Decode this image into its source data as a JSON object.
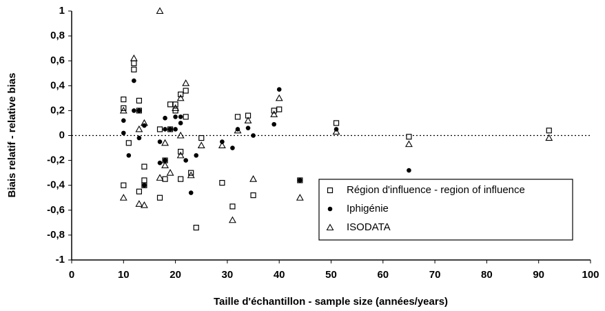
{
  "chart_data": {
    "type": "scatter",
    "xlabel": "Taille d'échantillon - sample size (années/years)",
    "ylabel": "Biais relatif - relative bias",
    "xlim": [
      0,
      100
    ],
    "xticks": [
      0,
      10,
      20,
      30,
      40,
      50,
      60,
      70,
      80,
      90,
      100
    ],
    "ylim": [
      -1,
      1
    ],
    "yticks": [
      -1,
      {
        "value": -0.8,
        "label": "-0,8"
      },
      {
        "value": -0.6,
        "label": "-0,6"
      },
      {
        "value": -0.4,
        "label": "-0,4"
      },
      {
        "value": -0.2,
        "label": "-0,2"
      },
      0,
      {
        "value": 0.2,
        "label": "0,2"
      },
      {
        "value": 0.4,
        "label": "0,4"
      },
      {
        "value": 0.6,
        "label": "0,6"
      },
      {
        "value": 0.8,
        "label": "0,8"
      },
      1
    ],
    "legend": "lower right",
    "series": [
      {
        "name": "Région d'influence - region of influence",
        "color": "#000000",
        "marker": "square",
        "x": [
          10,
          10,
          10,
          11,
          12,
          12,
          13,
          13,
          13,
          14,
          14,
          14,
          17,
          17,
          18,
          18,
          19,
          19,
          20,
          20,
          21,
          21,
          21,
          22,
          22,
          23,
          24,
          25,
          29,
          31,
          32,
          34,
          35,
          39,
          40,
          44,
          51,
          65,
          92
        ],
        "values": [
          0.29,
          0.22,
          -0.4,
          -0.06,
          0.58,
          0.53,
          0.28,
          0.2,
          -0.45,
          -0.25,
          -0.36,
          -0.4,
          0.05,
          -0.5,
          -0.2,
          -0.35,
          0.25,
          0.05,
          0.25,
          0.2,
          0.33,
          -0.13,
          -0.35,
          0.36,
          0.15,
          -0.3,
          -0.74,
          -0.02,
          -0.38,
          -0.57,
          0.15,
          0.16,
          -0.48,
          0.2,
          0.21,
          -0.36,
          0.1,
          -0.01,
          0.04
        ]
      },
      {
        "name": "Iphigénie",
        "color": "#000000",
        "marker": "dot",
        "x": [
          10,
          10,
          11,
          12,
          12,
          13,
          13,
          14,
          14,
          17,
          17,
          18,
          18,
          18,
          19,
          20,
          20,
          21,
          21,
          22,
          23,
          24,
          29,
          31,
          32,
          34,
          35,
          39,
          40,
          44,
          51,
          65
        ],
        "values": [
          0.12,
          0.02,
          -0.16,
          0.44,
          0.2,
          0.2,
          -0.02,
          -0.4,
          0.08,
          -0.05,
          -0.22,
          0.14,
          0.05,
          -0.2,
          0.05,
          0.05,
          0.15,
          0.15,
          0.1,
          -0.2,
          -0.46,
          -0.16,
          -0.05,
          -0.1,
          0.05,
          0.06,
          0.0,
          0.09,
          0.37,
          -0.36,
          0.05,
          -0.28
        ]
      },
      {
        "name": "ISODATA",
        "color": "#000000",
        "marker": "triangle",
        "x": [
          10,
          10,
          12,
          13,
          13,
          14,
          14,
          17,
          17,
          18,
          18,
          19,
          20,
          21,
          21,
          21,
          22,
          23,
          25,
          29,
          31,
          32,
          34,
          35,
          39,
          40,
          44,
          51,
          65,
          92
        ],
        "values": [
          -0.5,
          0.2,
          0.62,
          0.05,
          -0.55,
          -0.56,
          0.1,
          1.0,
          -0.34,
          -0.06,
          -0.24,
          -0.3,
          0.22,
          0.3,
          0.0,
          -0.16,
          0.42,
          -0.32,
          -0.08,
          -0.08,
          -0.68,
          0.04,
          0.12,
          -0.35,
          0.17,
          0.3,
          -0.5,
          0.03,
          -0.07,
          -0.02
        ]
      }
    ]
  }
}
